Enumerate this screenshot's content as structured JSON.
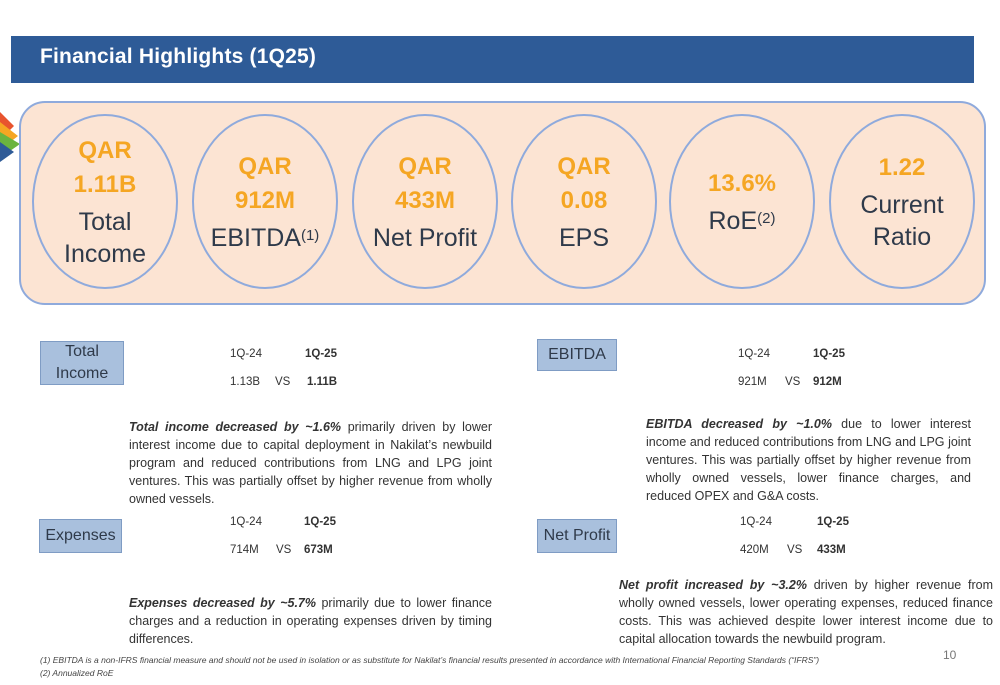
{
  "header": {
    "title": "Financial Highlights (1Q25)"
  },
  "kpis": [
    {
      "line1": "QAR",
      "line2": "1.11B",
      "label1": "Total",
      "label2": "Income",
      "sup": ""
    },
    {
      "line1": "QAR",
      "line2": "912M",
      "label1": "EBITDA",
      "label2": "",
      "sup": "(1)"
    },
    {
      "line1": "QAR",
      "line2": "433M",
      "label1": "Net Profit",
      "label2": "",
      "sup": ""
    },
    {
      "line1": "QAR",
      "line2": "0.08",
      "label1": "EPS",
      "label2": "",
      "sup": ""
    },
    {
      "line1": "13.6%",
      "line2": "",
      "label1": "RoE",
      "label2": "",
      "sup": "(2)"
    },
    {
      "line1": "1.22",
      "line2": "",
      "label1": "Current",
      "label2": "Ratio",
      "sup": ""
    }
  ],
  "sections": {
    "total_income": {
      "tag1": "Total",
      "tag2": "Income",
      "prev_period": "1Q-24",
      "curr_period": "1Q-25",
      "prev_value": "1.13B",
      "vs": "VS",
      "curr_value": "1.11B",
      "lead": "Total income decreased by ~1.6%",
      "body": " primarily driven by lower interest income due to capital deployment in Nakilat’s newbuild program and reduced contributions from LNG and LPG joint ventures. This was partially offset by higher revenue from wholly owned vessels."
    },
    "ebitda": {
      "tag": "EBITDA",
      "prev_period": "1Q-24",
      "curr_period": "1Q-25",
      "prev_value": "921M",
      "vs": "VS",
      "curr_value": "912M",
      "lead": "EBITDA decreased by ~1.0%",
      "body": " due to lower interest income and reduced contributions from LNG and LPG joint ventures. This was partially offset by higher revenue from wholly owned vessels, lower finance charges, and reduced OPEX and G&A costs."
    },
    "expenses": {
      "tag": "Expenses",
      "prev_period": "1Q-24",
      "curr_period": "1Q-25",
      "prev_value": "714M",
      "vs": "VS",
      "curr_value": "673M",
      "lead": "Expenses decreased by ~5.7%",
      "body": " primarily due to lower finance charges and a reduction in operating expenses driven by timing differences."
    },
    "net_profit": {
      "tag": "Net Profit",
      "prev_period": "1Q-24",
      "curr_period": "1Q-25",
      "prev_value": "420M",
      "vs": "VS",
      "curr_value": "433M",
      "lead": "Net profit increased by ~3.2%",
      "body": " driven by higher revenue from wholly owned vessels, lower operating expenses, reduced finance costs. This was achieved despite lower interest income due to capital allocation towards the newbuild program."
    }
  },
  "footnotes": [
    "(1)     EBITDA is a non-IFRS financial measure and  should not be used in isolation or as substitute for Nakilat’s financial results presented in accordance with International Financial Reporting Standards (“IFRS”)",
    "(2)     Annualized RoE"
  ],
  "page_number": "10",
  "colors": {
    "title_bar": "#2e5b97",
    "panel": "#fce4d3",
    "accent": "#f5a623",
    "tag": "#a9c0dd",
    "circle_border": "#8faadc"
  }
}
